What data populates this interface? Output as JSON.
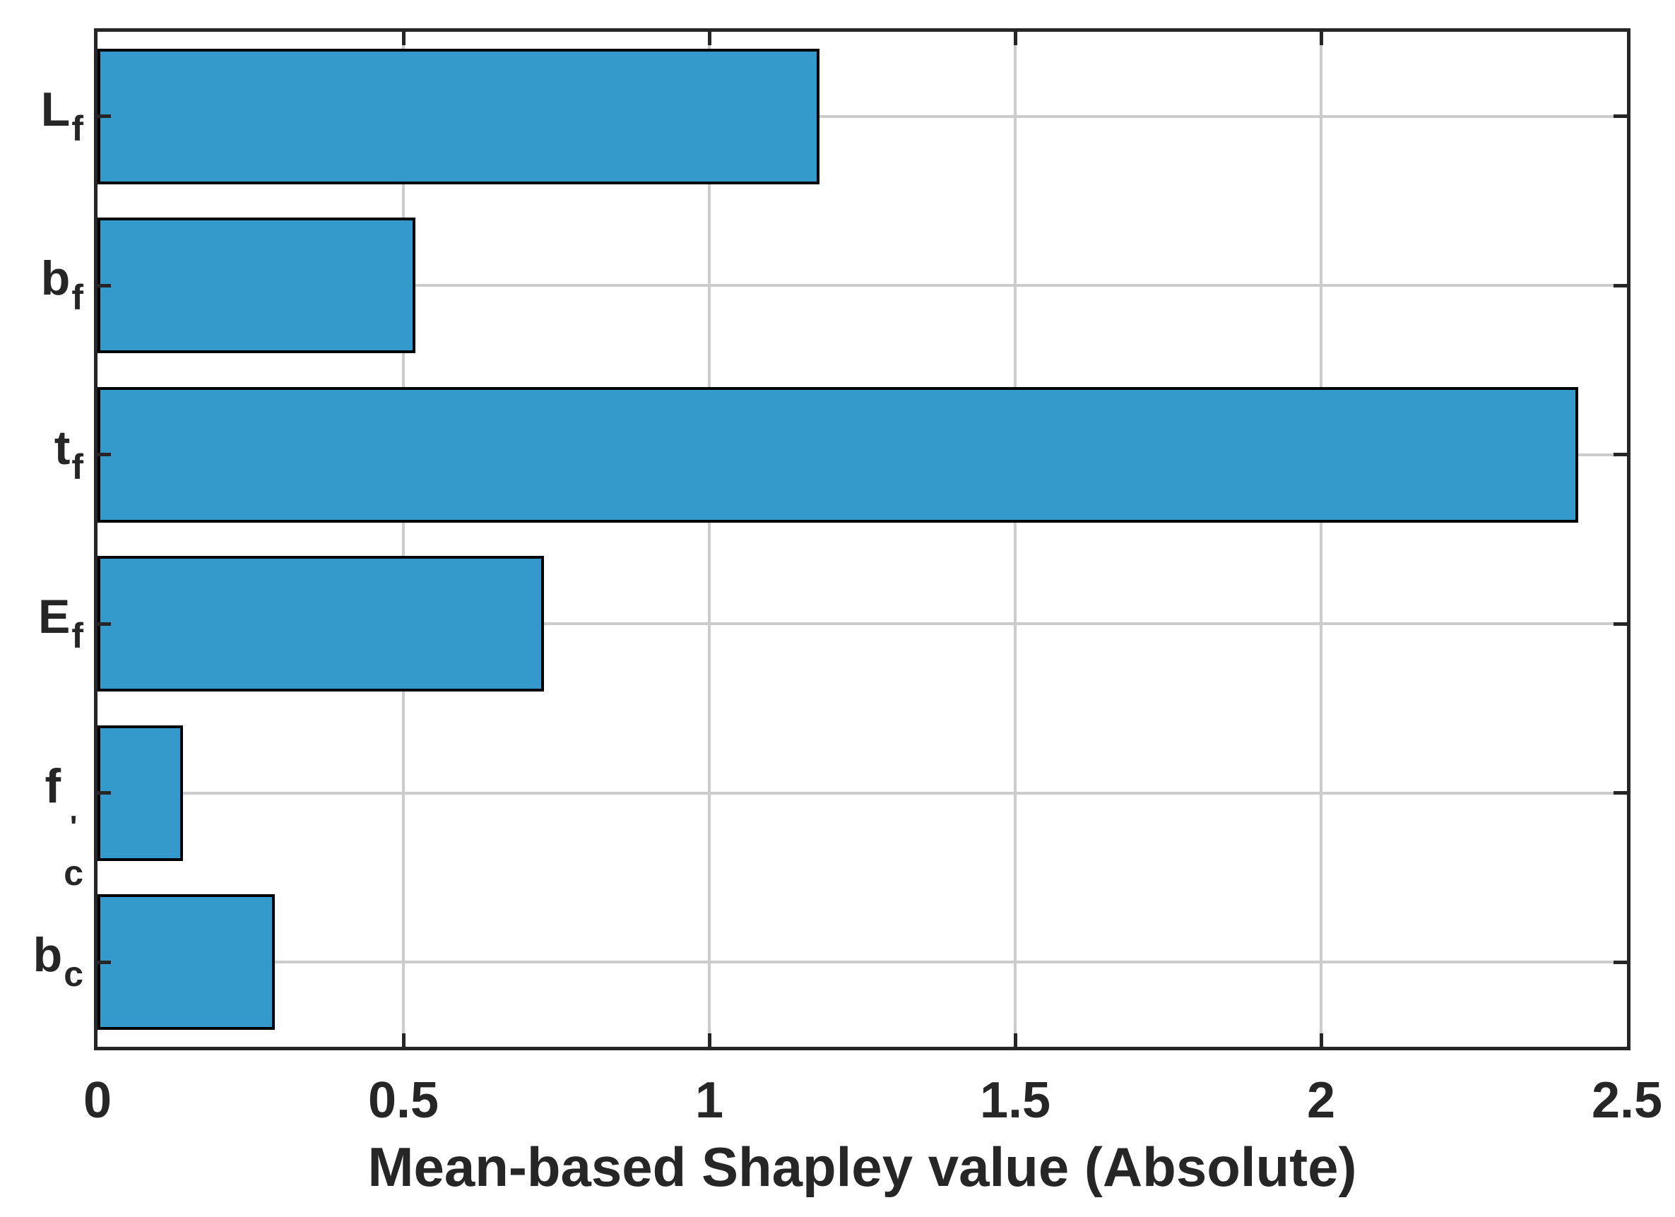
{
  "chart_data": {
    "type": "bar",
    "orientation": "horizontal",
    "title": "",
    "xlabel": "Mean-based Shapley value (Absolute)",
    "ylabel": "",
    "categories": [
      {
        "text": "L_f",
        "base": "L",
        "prime": "",
        "sub": "f"
      },
      {
        "text": "b_f",
        "base": "b",
        "prime": "",
        "sub": "f"
      },
      {
        "text": "t_f",
        "base": "t",
        "prime": "",
        "sub": "f"
      },
      {
        "text": "E_f",
        "base": "E",
        "prime": "",
        "sub": "f"
      },
      {
        "text": "f'_c",
        "base": "f",
        "prime": "'",
        "sub": "c"
      },
      {
        "text": "b_c",
        "base": "b",
        "prime": "",
        "sub": "c"
      }
    ],
    "values": [
      1.18,
      0.52,
      2.42,
      0.73,
      0.14,
      0.29
    ],
    "xticks": [
      0,
      0.5,
      1,
      1.5,
      2,
      2.5
    ],
    "xtick_labels": [
      "0",
      "0.5",
      "1",
      "1.5",
      "2",
      "2.5"
    ],
    "xlim": [
      0,
      2.5
    ],
    "grid": true,
    "legend": null,
    "bar_color": "#3499cb",
    "bar_edge_color": "#000000",
    "grid_color": "#cccccc",
    "axis_color": "#262626",
    "text_color": "#262626",
    "background_color": "#ffffff"
  }
}
